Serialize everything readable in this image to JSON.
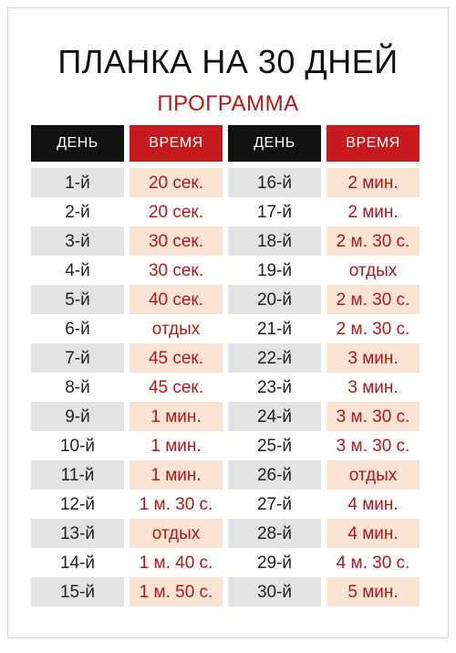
{
  "title": "ПЛАНКА НА 30 ДНЕЙ",
  "subtitle": "ПРОГРАММА",
  "headers": {
    "day": "ДЕНЬ",
    "time": "ВРЕМЯ"
  },
  "rows": [
    {
      "day1": "1-й",
      "time1": "20 сек.",
      "day2": "16-й",
      "time2": "2 мин."
    },
    {
      "day1": "2-й",
      "time1": "20 сек.",
      "day2": "17-й",
      "time2": "2 мин."
    },
    {
      "day1": "3-й",
      "time1": "30 сек.",
      "day2": "18-й",
      "time2": "2 м. 30 с."
    },
    {
      "day1": "4-й",
      "time1": "30 сек.",
      "day2": "19-й",
      "time2": "отдых"
    },
    {
      "day1": "5-й",
      "time1": "40 сек.",
      "day2": "20-й",
      "time2": "2 м. 30 с."
    },
    {
      "day1": "6-й",
      "time1": "отдых",
      "day2": "21-й",
      "time2": "2 м. 30 с."
    },
    {
      "day1": "7-й",
      "time1": "45 сек.",
      "day2": "22-й",
      "time2": "3 мин."
    },
    {
      "day1": "8-й",
      "time1": "45 сек.",
      "day2": "23-й",
      "time2": "3 мин."
    },
    {
      "day1": "9-й",
      "time1": "1 мин.",
      "day2": "24-й",
      "time2": "3 м. 30 с."
    },
    {
      "day1": "10-й",
      "time1": "1 мин.",
      "day2": "25-й",
      "time2": "3 м. 30 с."
    },
    {
      "day1": "11-й",
      "time1": "1 мин.",
      "day2": "26-й",
      "time2": "отдых"
    },
    {
      "day1": "12-й",
      "time1": "1 м. 30 с.",
      "day2": "27-й",
      "time2": "4 мин."
    },
    {
      "day1": "13-й",
      "time1": "отдых",
      "day2": "28-й",
      "time2": "4 мин."
    },
    {
      "day1": "14-й",
      "time1": "1 м. 40 с.",
      "day2": "29-й",
      "time2": "4 м. 30 с."
    },
    {
      "day1": "15-й",
      "time1": "1 м. 50 с.",
      "day2": "30-й",
      "time2": "5 мин."
    }
  ],
  "colors": {
    "accent_red": "#c61a1f",
    "header_black": "#111111",
    "text_red": "#b3181c",
    "row_gray": "#e3e3e3",
    "row_peach": "#fbe4d4"
  }
}
